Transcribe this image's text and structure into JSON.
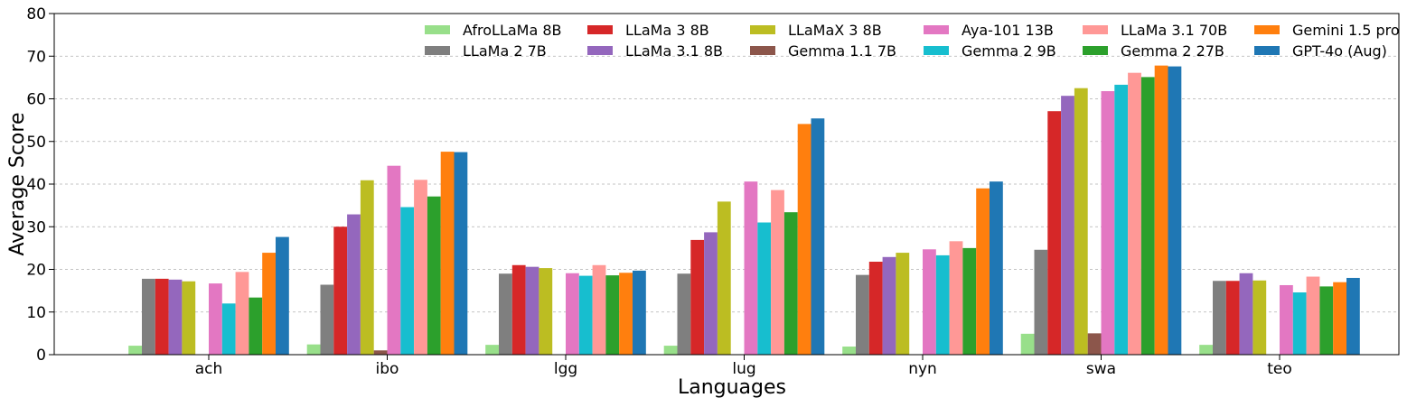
{
  "chart_data": {
    "type": "bar",
    "title": "",
    "xlabel": "Languages",
    "ylabel": "Average Score",
    "ylim": [
      0,
      80
    ],
    "yticks": [
      0,
      10,
      20,
      30,
      40,
      50,
      60,
      70,
      80
    ],
    "grid": "horizontal dashed",
    "legend_position": "top-right",
    "categories": [
      "ach",
      "ibo",
      "lgg",
      "lug",
      "nyn",
      "swa",
      "teo"
    ],
    "series": [
      {
        "name": "AfroLLaMa 8B",
        "color": "#98df8a",
        "values": [
          2.1,
          2.4,
          2.3,
          2.1,
          1.9,
          4.9,
          2.3
        ]
      },
      {
        "name": "LLaMa 2 7B",
        "color": "#7f7f7f",
        "values": [
          17.8,
          16.4,
          19.0,
          19.0,
          18.7,
          24.6,
          17.3
        ]
      },
      {
        "name": "LLaMa 3 8B",
        "color": "#d62728",
        "values": [
          17.8,
          30.0,
          21.0,
          26.9,
          21.8,
          57.1,
          17.3
        ]
      },
      {
        "name": "LLaMa 3.1 8B",
        "color": "#9467bd",
        "values": [
          17.6,
          32.9,
          20.6,
          28.7,
          22.9,
          60.7,
          19.1
        ]
      },
      {
        "name": "LLaMaX 3 8B",
        "color": "#bcbd22",
        "values": [
          17.2,
          40.9,
          20.3,
          35.9,
          23.9,
          62.5,
          17.4
        ]
      },
      {
        "name": "Gemma 1.1 7B",
        "color": "#8c564b",
        "values": [
          0,
          1.0,
          0,
          0,
          0,
          5.0,
          0
        ]
      },
      {
        "name": "Aya-101 13B",
        "color": "#e377c2",
        "values": [
          16.7,
          44.3,
          19.1,
          40.6,
          24.7,
          61.8,
          16.3
        ]
      },
      {
        "name": "Gemma 2 9B",
        "color": "#17becf",
        "values": [
          12.0,
          34.6,
          18.5,
          31.0,
          23.3,
          63.3,
          14.6
        ]
      },
      {
        "name": "LLaMa 3.1 70B",
        "color": "#ff9896",
        "values": [
          19.4,
          41.0,
          21.0,
          38.6,
          26.6,
          66.1,
          18.3
        ]
      },
      {
        "name": "Gemma 2 27B",
        "color": "#2ca02c",
        "values": [
          13.4,
          37.1,
          18.6,
          33.4,
          25.0,
          65.1,
          16.0
        ]
      },
      {
        "name": "Gemini 1.5 pro",
        "color": "#ff7f0e",
        "values": [
          23.9,
          47.6,
          19.2,
          54.1,
          39.0,
          67.8,
          17.0
        ]
      },
      {
        "name": "GPT-4o (Aug)",
        "color": "#1f77b4",
        "values": [
          27.6,
          47.5,
          19.7,
          55.4,
          40.6,
          67.6,
          18.0
        ]
      }
    ]
  }
}
